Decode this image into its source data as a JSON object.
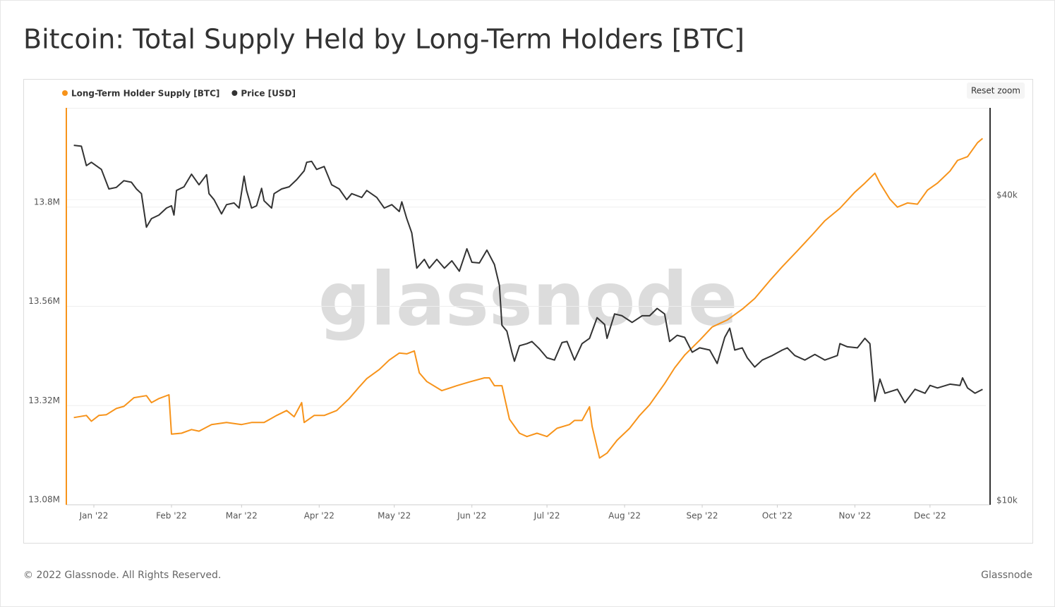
{
  "chart_data": {
    "type": "line",
    "title": "Bitcoin: Total Supply Held by Long-Term Holders [BTC]",
    "reset_zoom": "Reset zoom",
    "watermark": "glassnode",
    "xlim": [
      -11,
      358
    ],
    "xticks": [
      {
        "value": 0,
        "label": "Jan '22"
      },
      {
        "value": 31,
        "label": "Feb '22"
      },
      {
        "value": 59,
        "label": "Mar '22"
      },
      {
        "value": 90,
        "label": "Apr '22"
      },
      {
        "value": 120,
        "label": "May '22"
      },
      {
        "value": 151,
        "label": "Jun '22"
      },
      {
        "value": 181,
        "label": "Jul '22"
      },
      {
        "value": 212,
        "label": "Aug '22"
      },
      {
        "value": 243,
        "label": "Sep '22"
      },
      {
        "value": 273,
        "label": "Oct '22"
      },
      {
        "value": 304,
        "label": "Nov '22"
      },
      {
        "value": 334,
        "label": "Dec '22"
      }
    ],
    "ylim": [
      13080000,
      14040000
    ],
    "yticks": [
      {
        "value": 13080000,
        "label": "13.08M"
      },
      {
        "value": 13320000,
        "label": "13.32M"
      },
      {
        "value": 13560000,
        "label": "13.56M"
      },
      {
        "value": 13800000,
        "label": "13.8M"
      }
    ],
    "y2lim": [
      10000,
      60700
    ],
    "y2ticks": [
      {
        "value": 10000,
        "label": "$10k"
      },
      {
        "value": 40000,
        "label": "$40k"
      }
    ],
    "y2log": true,
    "grid": true,
    "legend": "top-left",
    "series": [
      {
        "name": "Long-Term Holder Supply [BTC]",
        "color": "#f7931a",
        "axis": "y",
        "x": [
          -8,
          -3,
          -1,
          2,
          5,
          9,
          12,
          16,
          21,
          23,
          26,
          30,
          31,
          35,
          39,
          42,
          47,
          53,
          59,
          63,
          68,
          73,
          77,
          80,
          83,
          84,
          88,
          92,
          97,
          102,
          106,
          109,
          114,
          118,
          122,
          125,
          128,
          130,
          133,
          139,
          145,
          150,
          156,
          158,
          160,
          163,
          166,
          170,
          173,
          177,
          181,
          185,
          190,
          192,
          195,
          198,
          199,
          202,
          205,
          209,
          214,
          218,
          222,
          228,
          232,
          236,
          242,
          247,
          253,
          259,
          264,
          270,
          275,
          281,
          287,
          292,
          298,
          304,
          308,
          312,
          314,
          318,
          321,
          325,
          329,
          333,
          337,
          342,
          345,
          349,
          353,
          355
        ],
        "values": [
          13291000,
          13296000,
          13282000,
          13296000,
          13298000,
          13313000,
          13318000,
          13339000,
          13344000,
          13327000,
          13337000,
          13346000,
          13251000,
          13253000,
          13262000,
          13258000,
          13274000,
          13279000,
          13274000,
          13279000,
          13279000,
          13296000,
          13308000,
          13293000,
          13327000,
          13279000,
          13296000,
          13296000,
          13308000,
          13337000,
          13365000,
          13385000,
          13407000,
          13430000,
          13447000,
          13445000,
          13452000,
          13399000,
          13378000,
          13356000,
          13368000,
          13377000,
          13387000,
          13387000,
          13368000,
          13368000,
          13287000,
          13253000,
          13245000,
          13253000,
          13245000,
          13265000,
          13274000,
          13284000,
          13284000,
          13317000,
          13270000,
          13193000,
          13205000,
          13236000,
          13265000,
          13296000,
          13322000,
          13373000,
          13411000,
          13442000,
          13478000,
          13510000,
          13527000,
          13553000,
          13579000,
          13622000,
          13656000,
          13694000,
          13733000,
          13767000,
          13797000,
          13836000,
          13858000,
          13882000,
          13858000,
          13819000,
          13800000,
          13810000,
          13807000,
          13841000,
          13858000,
          13887000,
          13913000,
          13922000,
          13956000,
          13966000
        ]
      },
      {
        "name": "Price [USD]",
        "color": "#333333",
        "axis": "y2",
        "x": [
          -8,
          -5,
          -3,
          -1,
          3,
          6,
          9,
          12,
          15,
          17,
          19,
          21,
          23,
          26,
          29,
          31,
          32,
          33,
          36,
          39,
          42,
          45,
          46,
          48,
          51,
          53,
          56,
          58,
          60,
          61,
          63,
          65,
          67,
          68,
          71,
          72,
          75,
          78,
          81,
          84,
          85,
          87,
          89,
          92,
          95,
          98,
          101,
          103,
          107,
          109,
          113,
          116,
          119,
          122,
          123,
          125,
          127,
          129,
          132,
          134,
          137,
          140,
          143,
          146,
          149,
          151,
          154,
          157,
          160,
          162,
          163,
          165,
          167,
          168,
          170,
          173,
          175,
          178,
          181,
          184,
          187,
          189,
          192,
          195,
          198,
          201,
          204,
          205,
          208,
          211,
          215,
          219,
          222,
          225,
          228,
          230,
          233,
          236,
          239,
          242,
          246,
          249,
          252,
          254,
          256,
          259,
          261,
          264,
          267,
          271,
          275,
          277,
          280,
          284,
          288,
          292,
          297,
          298,
          301,
          305,
          308,
          310,
          312,
          314,
          316,
          321,
          324,
          328,
          332,
          334,
          337,
          342,
          346,
          347,
          349,
          352,
          355
        ],
        "values": [
          51200,
          51000,
          46700,
          47400,
          45900,
          42000,
          42300,
          43600,
          43300,
          42000,
          41100,
          35300,
          36700,
          37300,
          38500,
          38900,
          37300,
          41700,
          42400,
          44900,
          42800,
          44800,
          41100,
          40000,
          37500,
          39100,
          39400,
          38500,
          44500,
          41700,
          38500,
          38900,
          42100,
          39800,
          38500,
          41100,
          42000,
          42400,
          43800,
          45600,
          47400,
          47600,
          45900,
          46500,
          42800,
          42000,
          40000,
          41100,
          40400,
          41700,
          40400,
          38500,
          39100,
          37900,
          39600,
          36700,
          34400,
          29300,
          30500,
          29300,
          30500,
          29300,
          30300,
          28900,
          32000,
          30100,
          30000,
          31800,
          29800,
          27100,
          22600,
          22000,
          20000,
          19200,
          20600,
          20800,
          21000,
          20300,
          19500,
          19300,
          20900,
          21000,
          19300,
          20800,
          21300,
          23400,
          22700,
          21300,
          23800,
          23600,
          22900,
          23600,
          23600,
          24400,
          23800,
          21000,
          21600,
          21400,
          20000,
          20400,
          20200,
          19000,
          21400,
          22300,
          20200,
          20400,
          19500,
          18700,
          19300,
          19700,
          20200,
          20400,
          19700,
          19300,
          19800,
          19300,
          19700,
          20800,
          20500,
          20400,
          21300,
          20800,
          16000,
          17700,
          16600,
          16900,
          15900,
          16900,
          16600,
          17200,
          17000,
          17300,
          17200,
          17800,
          17000,
          16600,
          16900
        ]
      }
    ]
  },
  "footer": {
    "left": "© 2022 Glassnode. All Rights Reserved.",
    "right": "Glassnode"
  }
}
